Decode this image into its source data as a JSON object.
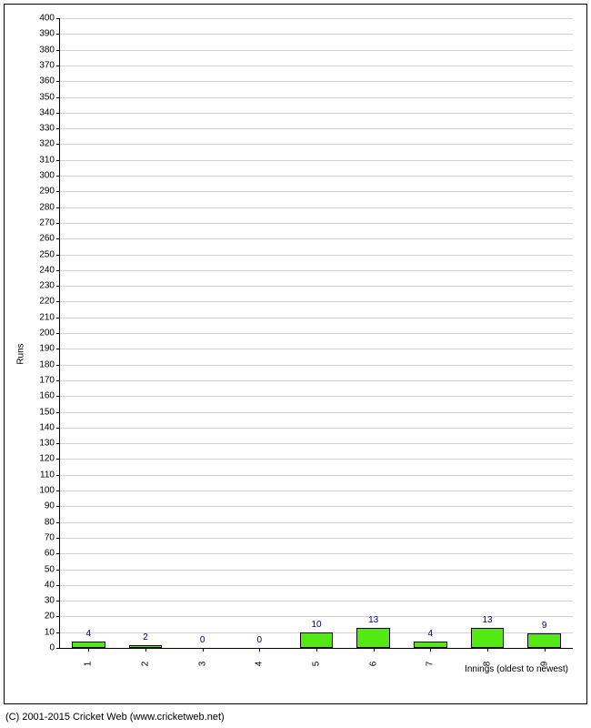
{
  "chart": {
    "type": "bar",
    "ylabel": "Runs",
    "xlabel": "Innings (oldest to newest)",
    "ylim": [
      0,
      400
    ],
    "ytick_step": 10,
    "categories": [
      "1",
      "2",
      "3",
      "4",
      "5",
      "6",
      "7",
      "8",
      "9"
    ],
    "values": [
      4,
      2,
      0,
      0,
      10,
      13,
      4,
      13,
      9
    ],
    "bar_color": "#54e814",
    "bar_border_color": "#000000",
    "bar_label_color": "#000080",
    "grid_color": "#d3d3d3",
    "axis_color": "#000000",
    "background_color": "#ffffff",
    "tick_fontsize": 10,
    "label_fontsize": 10,
    "bar_label_fontsize": 10,
    "bar_width_ratio": 0.58
  },
  "copyright": "(C) 2001-2015 Cricket Web (www.cricketweb.net)"
}
